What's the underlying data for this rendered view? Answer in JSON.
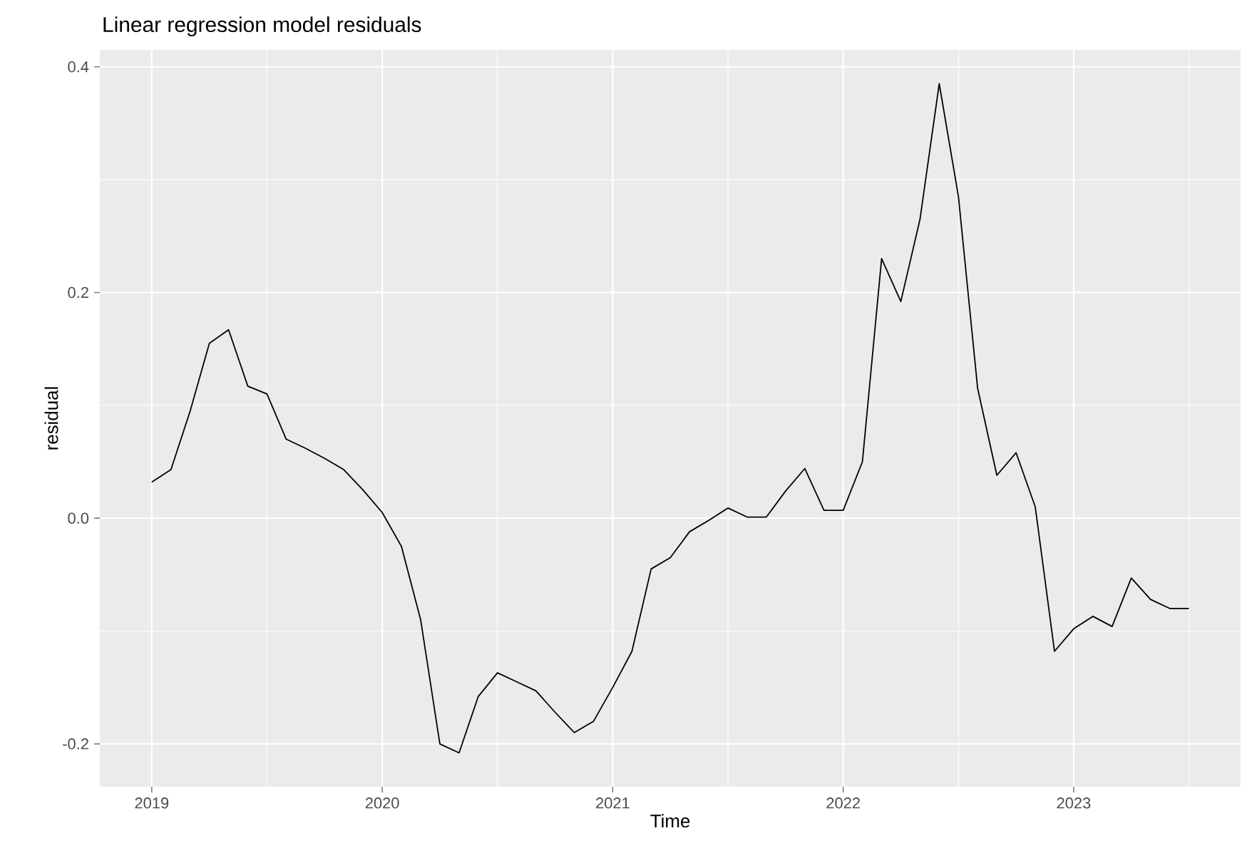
{
  "chart_data": {
    "type": "line",
    "title": "Linear regression model residuals",
    "xlabel": "Time",
    "ylabel": "residual",
    "x": [
      "2019-01",
      "2019-02",
      "2019-03",
      "2019-04",
      "2019-05",
      "2019-06",
      "2019-07",
      "2019-08",
      "2019-09",
      "2019-10",
      "2019-11",
      "2019-12",
      "2020-01",
      "2020-02",
      "2020-03",
      "2020-04",
      "2020-05",
      "2020-06",
      "2020-07",
      "2020-08",
      "2020-09",
      "2020-10",
      "2020-11",
      "2020-12",
      "2021-01",
      "2021-02",
      "2021-03",
      "2021-04",
      "2021-05",
      "2021-06",
      "2021-07",
      "2021-08",
      "2021-09",
      "2021-10",
      "2021-11",
      "2021-12",
      "2022-01",
      "2022-02",
      "2022-03",
      "2022-04",
      "2022-05",
      "2022-06",
      "2022-07",
      "2022-08",
      "2022-09",
      "2022-10",
      "2022-11",
      "2022-12",
      "2023-01",
      "2023-02",
      "2023-03",
      "2023-04",
      "2023-05",
      "2023-06",
      "2023-07"
    ],
    "series": [
      {
        "color": "#000000",
        "values": [
          0.032,
          0.043,
          0.095,
          0.155,
          0.167,
          0.117,
          0.11,
          0.07,
          0.062,
          0.053,
          0.043,
          0.025,
          0.005,
          -0.025,
          -0.09,
          -0.2,
          -0.208,
          -0.158,
          -0.137,
          -0.145,
          -0.153,
          -0.172,
          -0.19,
          -0.18,
          -0.15,
          -0.118,
          -0.045,
          -0.035,
          -0.012,
          -0.002,
          0.009,
          0.001,
          0.001,
          0.024,
          0.044,
          0.007,
          0.007,
          0.05,
          0.23,
          0.192,
          0.265,
          0.385,
          0.285,
          0.115,
          0.038,
          0.058,
          0.01,
          -0.118,
          -0.098,
          -0.087,
          -0.096,
          -0.053,
          -0.072,
          -0.08,
          -0.08
        ]
      }
    ],
    "xlim": [
      "2018-10-10",
      "2023-09-22"
    ],
    "ylim": [
      -0.238,
      0.415
    ],
    "xticks": [
      {
        "value": "2019-01-01",
        "label": "2019"
      },
      {
        "value": "2020-01-01",
        "label": "2020"
      },
      {
        "value": "2021-01-01",
        "label": "2021"
      },
      {
        "value": "2022-01-01",
        "label": "2022"
      },
      {
        "value": "2023-01-01",
        "label": "2023"
      }
    ],
    "yticks": [
      {
        "value": -0.2,
        "label": "-0.2"
      },
      {
        "value": 0.0,
        "label": "0.0"
      },
      {
        "value": 0.2,
        "label": "0.2"
      },
      {
        "value": 0.4,
        "label": "0.4"
      }
    ],
    "grid": true
  }
}
